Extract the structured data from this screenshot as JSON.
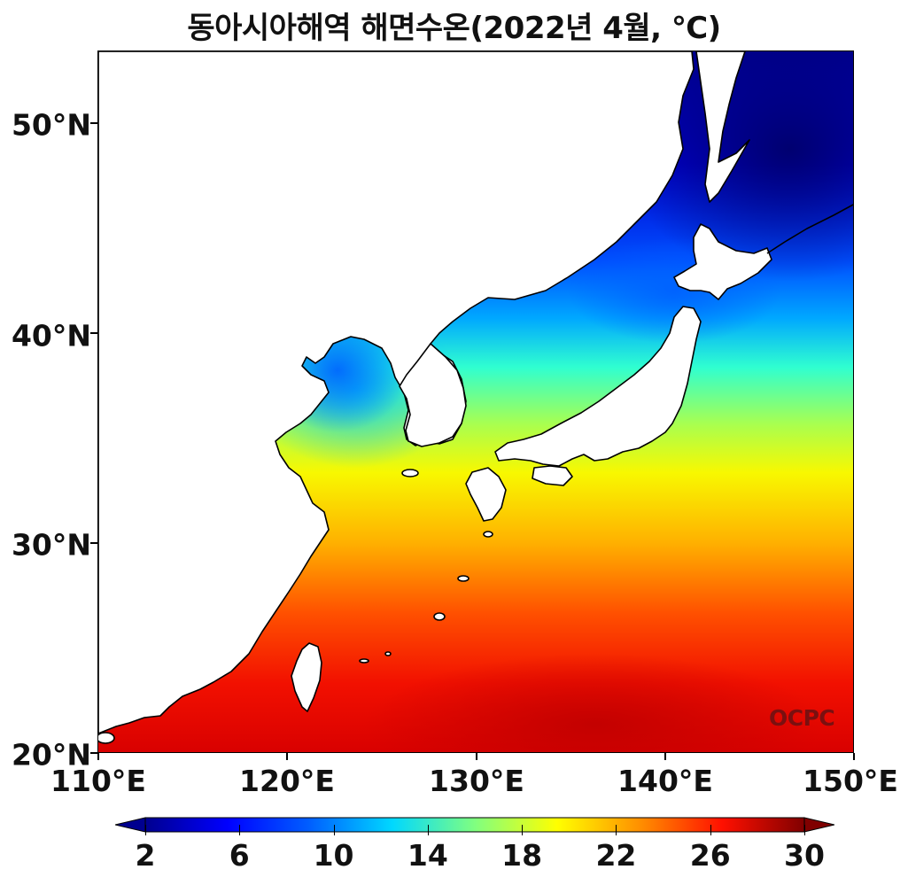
{
  "title": "동아시아해역 해면수온(2022년 4월, ℃)",
  "map": {
    "lon_range": [
      110,
      150
    ],
    "lat_range": [
      20,
      53.5
    ],
    "projection": "plate carrée",
    "variable": "sea surface temperature",
    "land_color": "#ffffff",
    "coastline_color": "#000000",
    "y_ticks": [
      {
        "value": 20,
        "label": "20°N"
      },
      {
        "value": 30,
        "label": "30°N"
      },
      {
        "value": 40,
        "label": "40°N"
      },
      {
        "value": 50,
        "label": "50°N"
      }
    ],
    "x_ticks": [
      {
        "value": 110,
        "label": "110°E"
      },
      {
        "value": 120,
        "label": "120°E"
      },
      {
        "value": 130,
        "label": "130°E"
      },
      {
        "value": 140,
        "label": "140°E"
      },
      {
        "value": 150,
        "label": "150°E"
      }
    ],
    "watermark": "OCPC"
  },
  "colorbar": {
    "colormap": "jet",
    "min": 2,
    "max": 30,
    "extend": "both",
    "ticks": [
      {
        "value": 2,
        "label": "2"
      },
      {
        "value": 6,
        "label": "6"
      },
      {
        "value": 10,
        "label": "10"
      },
      {
        "value": 14,
        "label": "14"
      },
      {
        "value": 18,
        "label": "18"
      },
      {
        "value": 22,
        "label": "22"
      },
      {
        "value": 26,
        "label": "26"
      },
      {
        "value": 30,
        "label": "30"
      }
    ]
  }
}
